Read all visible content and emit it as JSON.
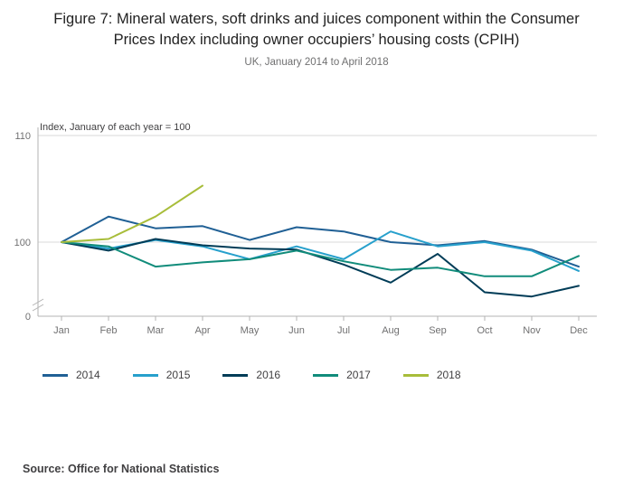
{
  "header": {
    "title": "Figure 7: Mineral waters, soft drinks and juices component within the Consumer Prices Index including owner occupiers’ housing costs (CPIH)",
    "subtitle": "UK, January 2014 to April 2018"
  },
  "chart_data": {
    "type": "line",
    "axis_note": "Index, January of each year = 100",
    "x": [
      "Jan",
      "Feb",
      "Mar",
      "Apr",
      "May",
      "Jun",
      "Jul",
      "Aug",
      "Sep",
      "Oct",
      "Nov",
      "Dec"
    ],
    "yticks": [
      110,
      100
    ],
    "y_axis_break_label": "0",
    "ylim_displayed": [
      93,
      111
    ],
    "grid": "horizontal-only",
    "legend_position": "bottom-left",
    "series": [
      {
        "name": "2014",
        "color": "#206095",
        "values": [
          100,
          102.4,
          101.3,
          101.5,
          100.2,
          101.4,
          101.0,
          100.0,
          99.7,
          100.1,
          99.3,
          97.7
        ]
      },
      {
        "name": "2015",
        "color": "#27a0cc",
        "values": [
          100,
          99.4,
          100.2,
          99.6,
          98.4,
          99.6,
          98.4,
          101.0,
          99.6,
          100.0,
          99.2,
          97.3
        ]
      },
      {
        "name": "2016",
        "color": "#003c57",
        "values": [
          100,
          99.2,
          100.3,
          99.7,
          99.4,
          99.3,
          97.9,
          96.2,
          98.9,
          95.3,
          94.9,
          95.9
        ]
      },
      {
        "name": "2017",
        "color": "#118c7b",
        "values": [
          100,
          99.6,
          97.7,
          98.1,
          98.4,
          99.2,
          98.2,
          97.4,
          97.6,
          96.8,
          96.8,
          98.7
        ]
      },
      {
        "name": "2018",
        "color": "#a8bd3a",
        "values": [
          100,
          100.3,
          102.4,
          105.3
        ]
      }
    ]
  },
  "source": "Source: Office for National Statistics"
}
